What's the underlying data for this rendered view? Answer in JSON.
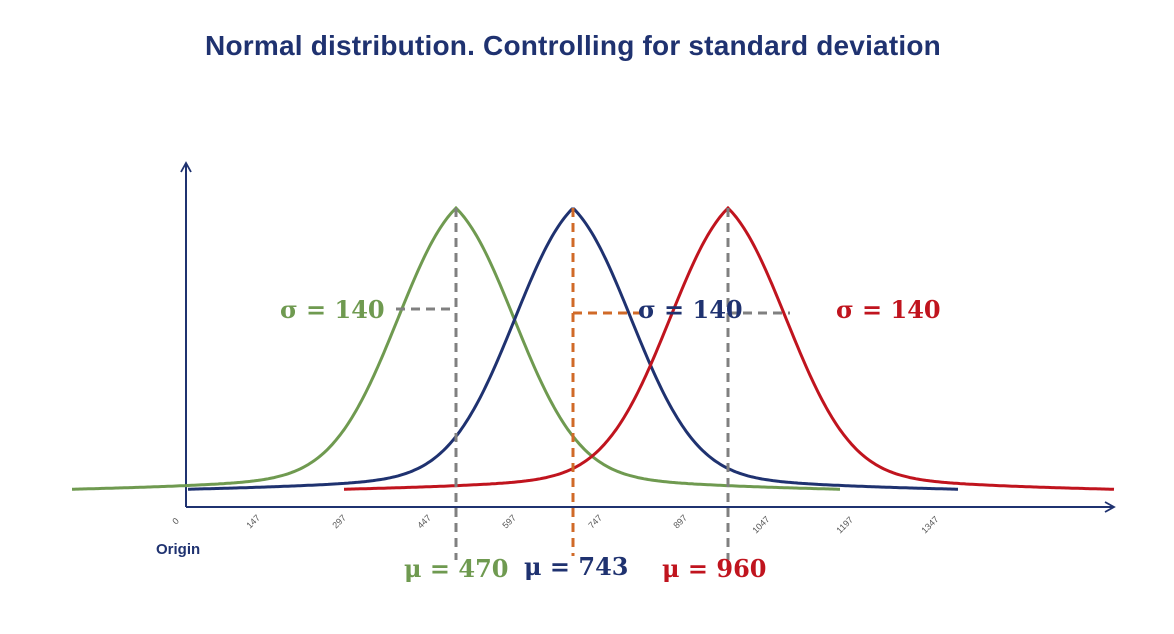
{
  "title": "Normal distribution. Controlling for standard deviation",
  "origin_label": "Origin",
  "x_ticks": [
    "0",
    "147",
    "297",
    "447",
    "597",
    "747",
    "897",
    "1047",
    "1197",
    "1347"
  ],
  "colors": {
    "axis": "#1f3270",
    "green": "#6f9a50",
    "blue": "#1f3270",
    "red": "#c0141e",
    "guide_gray": "#808080",
    "guide_orange": "#d06a28"
  },
  "curves": [
    {
      "name": "green",
      "color": "#6f9a50",
      "sigma_label": "σ = 140",
      "mu_label": "μ = 470"
    },
    {
      "name": "blue",
      "color": "#1f3270",
      "sigma_label": "σ = 140",
      "mu_label": "μ = 743"
    },
    {
      "name": "red",
      "color": "#c0141e",
      "sigma_label": "σ = 140",
      "mu_label": "μ = 960"
    }
  ]
}
